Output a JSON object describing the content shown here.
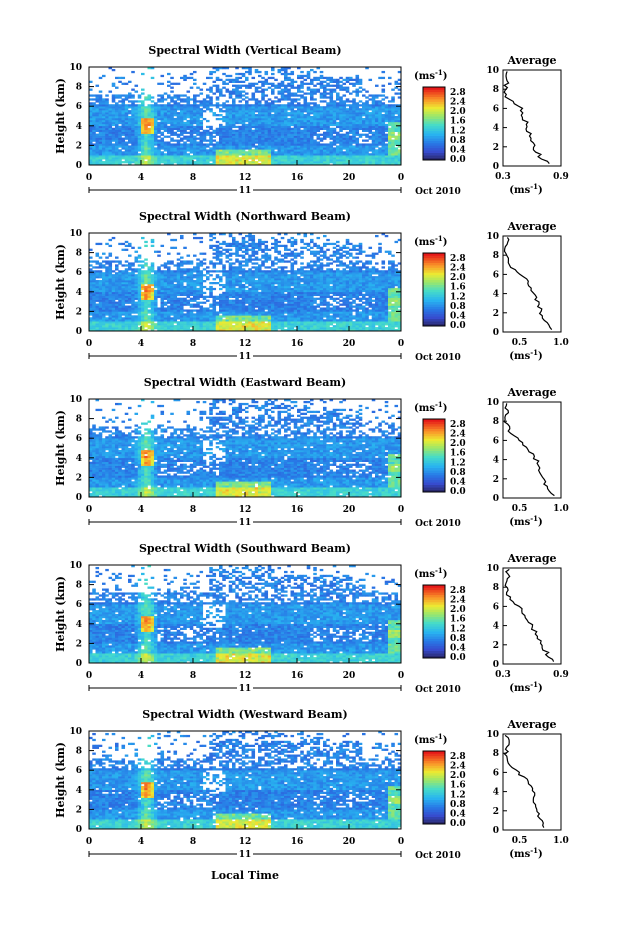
{
  "x_label": "Local Time",
  "height_label": "Height (km)",
  "date_label": "Oct 2010",
  "day_label": "11",
  "average_title": "Average",
  "unit_label": "(ms",
  "unit_exp": "-1",
  "colorbar_ticks": [
    "0.0",
    "0.4",
    "0.8",
    "1.2",
    "1.6",
    "2.0",
    "2.4",
    "2.8"
  ],
  "chart_data": [
    {
      "type": "heatmap",
      "title": "Spectral Width (Vertical Beam)",
      "ylabel": "Height (km)",
      "xlabel": "Local Time",
      "x_ticks": [
        "0",
        "4",
        "8",
        "12",
        "16",
        "20",
        "0"
      ],
      "y_ticks": [
        "0",
        "2",
        "4",
        "6",
        "8",
        "10"
      ],
      "xlim": [
        0,
        24
      ],
      "ylim": [
        0,
        10
      ],
      "colorbar": {
        "label": "(ms-1)",
        "range": [
          0.0,
          2.8
        ]
      },
      "average_profile": {
        "title": "Average",
        "xlabel": "(ms-1)",
        "x_ticks": [
          "0.3",
          "0.9"
        ],
        "xlim": [
          0.3,
          0.9
        ],
        "heights": [
          0.3,
          1,
          2,
          3,
          4,
          5,
          6,
          7,
          8,
          9,
          9.8
        ],
        "values": [
          0.78,
          0.68,
          0.62,
          0.6,
          0.55,
          0.52,
          0.48,
          0.35,
          0.33,
          0.34,
          0.36
        ]
      }
    },
    {
      "type": "heatmap",
      "title": "Spectral Width (Northward Beam)",
      "ylabel": "Height (km)",
      "xlabel": "Local Time",
      "x_ticks": [
        "0",
        "4",
        "8",
        "12",
        "16",
        "20",
        "0"
      ],
      "y_ticks": [
        "0",
        "2",
        "4",
        "6",
        "8",
        "10"
      ],
      "xlim": [
        0,
        24
      ],
      "ylim": [
        0,
        10
      ],
      "colorbar": {
        "label": "(ms-1)",
        "range": [
          0.0,
          2.8
        ]
      },
      "average_profile": {
        "title": "Average",
        "xlabel": "(ms-1)",
        "x_ticks": [
          "0.5",
          "1.0"
        ],
        "xlim": [
          0.3,
          1.0
        ],
        "heights": [
          0.3,
          1,
          2,
          3,
          4,
          5,
          6,
          7,
          8,
          9,
          9.8
        ],
        "values": [
          0.88,
          0.82,
          0.76,
          0.72,
          0.68,
          0.62,
          0.52,
          0.38,
          0.33,
          0.35,
          0.36
        ]
      }
    },
    {
      "type": "heatmap",
      "title": "Spectral Width (Eastward Beam)",
      "ylabel": "Height (km)",
      "xlabel": "Local Time",
      "x_ticks": [
        "0",
        "4",
        "8",
        "12",
        "16",
        "20",
        "0"
      ],
      "y_ticks": [
        "0",
        "2",
        "4",
        "6",
        "8",
        "10"
      ],
      "xlim": [
        0,
        24
      ],
      "ylim": [
        0,
        10
      ],
      "colorbar": {
        "label": "(ms-1)",
        "range": [
          0.0,
          2.8
        ]
      },
      "average_profile": {
        "title": "Average",
        "xlabel": "(ms-1)",
        "x_ticks": [
          "0.5",
          "1.0"
        ],
        "xlim": [
          0.3,
          1.0
        ],
        "heights": [
          0.3,
          1,
          2,
          3,
          4,
          5,
          6,
          7,
          8,
          9,
          9.8
        ],
        "values": [
          0.9,
          0.84,
          0.78,
          0.74,
          0.7,
          0.62,
          0.5,
          0.38,
          0.33,
          0.36,
          0.34
        ]
      }
    },
    {
      "type": "heatmap",
      "title": "Spectral Width (Southward Beam)",
      "ylabel": "Height (km)",
      "xlabel": "Local Time",
      "x_ticks": [
        "0",
        "4",
        "8",
        "12",
        "16",
        "20",
        "0"
      ],
      "y_ticks": [
        "0",
        "2",
        "4",
        "6",
        "8",
        "10"
      ],
      "xlim": [
        0,
        24
      ],
      "ylim": [
        0,
        10
      ],
      "colorbar": {
        "label": "(ms-1)",
        "range": [
          0.0,
          2.8
        ]
      },
      "average_profile": {
        "title": "Average",
        "xlabel": "(ms-1)",
        "x_ticks": [
          "0.3",
          "0.9"
        ],
        "xlim": [
          0.3,
          0.9
        ],
        "heights": [
          0.3,
          1,
          2,
          3,
          4,
          5,
          6,
          7,
          8,
          9,
          9.8
        ],
        "values": [
          0.84,
          0.76,
          0.7,
          0.64,
          0.6,
          0.54,
          0.46,
          0.36,
          0.34,
          0.36,
          0.35
        ]
      }
    },
    {
      "type": "heatmap",
      "title": "Spectral Width (Westward Beam)",
      "ylabel": "Height (km)",
      "xlabel": "Local Time",
      "x_ticks": [
        "0",
        "4",
        "8",
        "12",
        "16",
        "20",
        "0"
      ],
      "y_ticks": [
        "0",
        "2",
        "4",
        "6",
        "8",
        "10"
      ],
      "xlim": [
        0,
        24
      ],
      "ylim": [
        0,
        10
      ],
      "colorbar": {
        "label": "(ms-1)",
        "range": [
          0.0,
          2.8
        ]
      },
      "average_profile": {
        "title": "Average",
        "xlabel": "(ms-1)",
        "x_ticks": [
          "0.5",
          "1.0"
        ],
        "xlim": [
          0.3,
          1.0
        ],
        "heights": [
          0.3,
          1,
          2,
          3,
          4,
          5,
          6,
          7,
          8,
          9,
          9.8
        ],
        "values": [
          0.8,
          0.76,
          0.72,
          0.68,
          0.66,
          0.62,
          0.48,
          0.36,
          0.34,
          0.36,
          0.35
        ]
      }
    }
  ]
}
